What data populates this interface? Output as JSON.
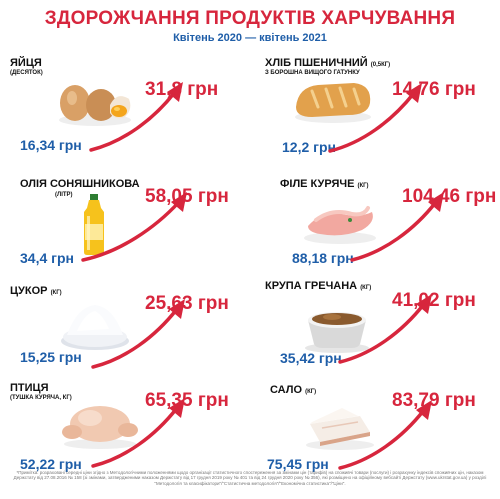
{
  "title": "ЗДОРОЖЧАННЯ ПРОДУКТІВ ХАРЧУВАННЯ",
  "subtitle": "Квітень 2020 — квітень 2021",
  "colors": {
    "accent": "#d7263d",
    "old_price": "#1f5ea8"
  },
  "items": [
    {
      "name": "ЯЙЦЯ",
      "unit": "",
      "sub": "(ДЕСЯТОК)",
      "old_price": "16,34 грн",
      "new_price": "31,8 грн",
      "icon": "eggs-icon"
    },
    {
      "name": "ХЛІБ ПШЕНИЧНИЙ",
      "unit": "(0,5КГ)",
      "sub": "З БОРОШНА ВИЩОГО ГАТУНКУ",
      "old_price": "12,2 грн",
      "new_price": "14,76 грн",
      "icon": "bread-icon"
    },
    {
      "name": "ОЛІЯ СОНЯШНИКОВА",
      "unit": "",
      "sub": "(ЛІТР)",
      "old_price": "34,4 грн",
      "new_price": "58,05 грн",
      "icon": "oil-bottle-icon"
    },
    {
      "name": "ФІЛЕ КУРЯЧЕ",
      "unit": "(КГ)",
      "sub": "",
      "old_price": "88,18 грн",
      "new_price": "104,46 грн",
      "icon": "chicken-fillet-icon"
    },
    {
      "name": "ЦУКОР",
      "unit": "(КГ)",
      "sub": "",
      "old_price": "15,25 грн",
      "new_price": "25,63 грн",
      "icon": "sugar-icon"
    },
    {
      "name": "КРУПА ГРЕЧАНА",
      "unit": "(КГ)",
      "sub": "",
      "old_price": "35,42 грн",
      "new_price": "41,02 грн",
      "icon": "buckwheat-icon"
    },
    {
      "name": "ПТИЦЯ",
      "unit": "",
      "sub": "(ТУШКА КУРЯЧА, КГ)",
      "old_price": "52,22 грн",
      "new_price": "65,35 грн",
      "icon": "whole-chicken-icon"
    },
    {
      "name": "САЛО",
      "unit": "(КГ)",
      "sub": "",
      "old_price": "75,45 грн",
      "new_price": "83,79 грн",
      "icon": "salo-icon"
    }
  ],
  "footnote": "*Примітка: розраховані середні ціни згідно з Методологічними положеннями щодо організації статистичного спостереження за змінами цін (тарифів) на споживчі товари (послуги) і розрахунку індексів споживчих цін, наказом Держстату від 27.08.2016 № 158 (зі змінами, затвердженими наказом Держстату від 17 грудня 2019 року № 401 та від 24 грудня 2020 року № 356), які розміщено на офіційному вебсайті Держстату (www.ukrstat.gov.ua) у розділі \"Методологія та класифікатори\"/\"Статистична методологія\"/\"Економічна статистика\"/\"Ціни\"."
}
